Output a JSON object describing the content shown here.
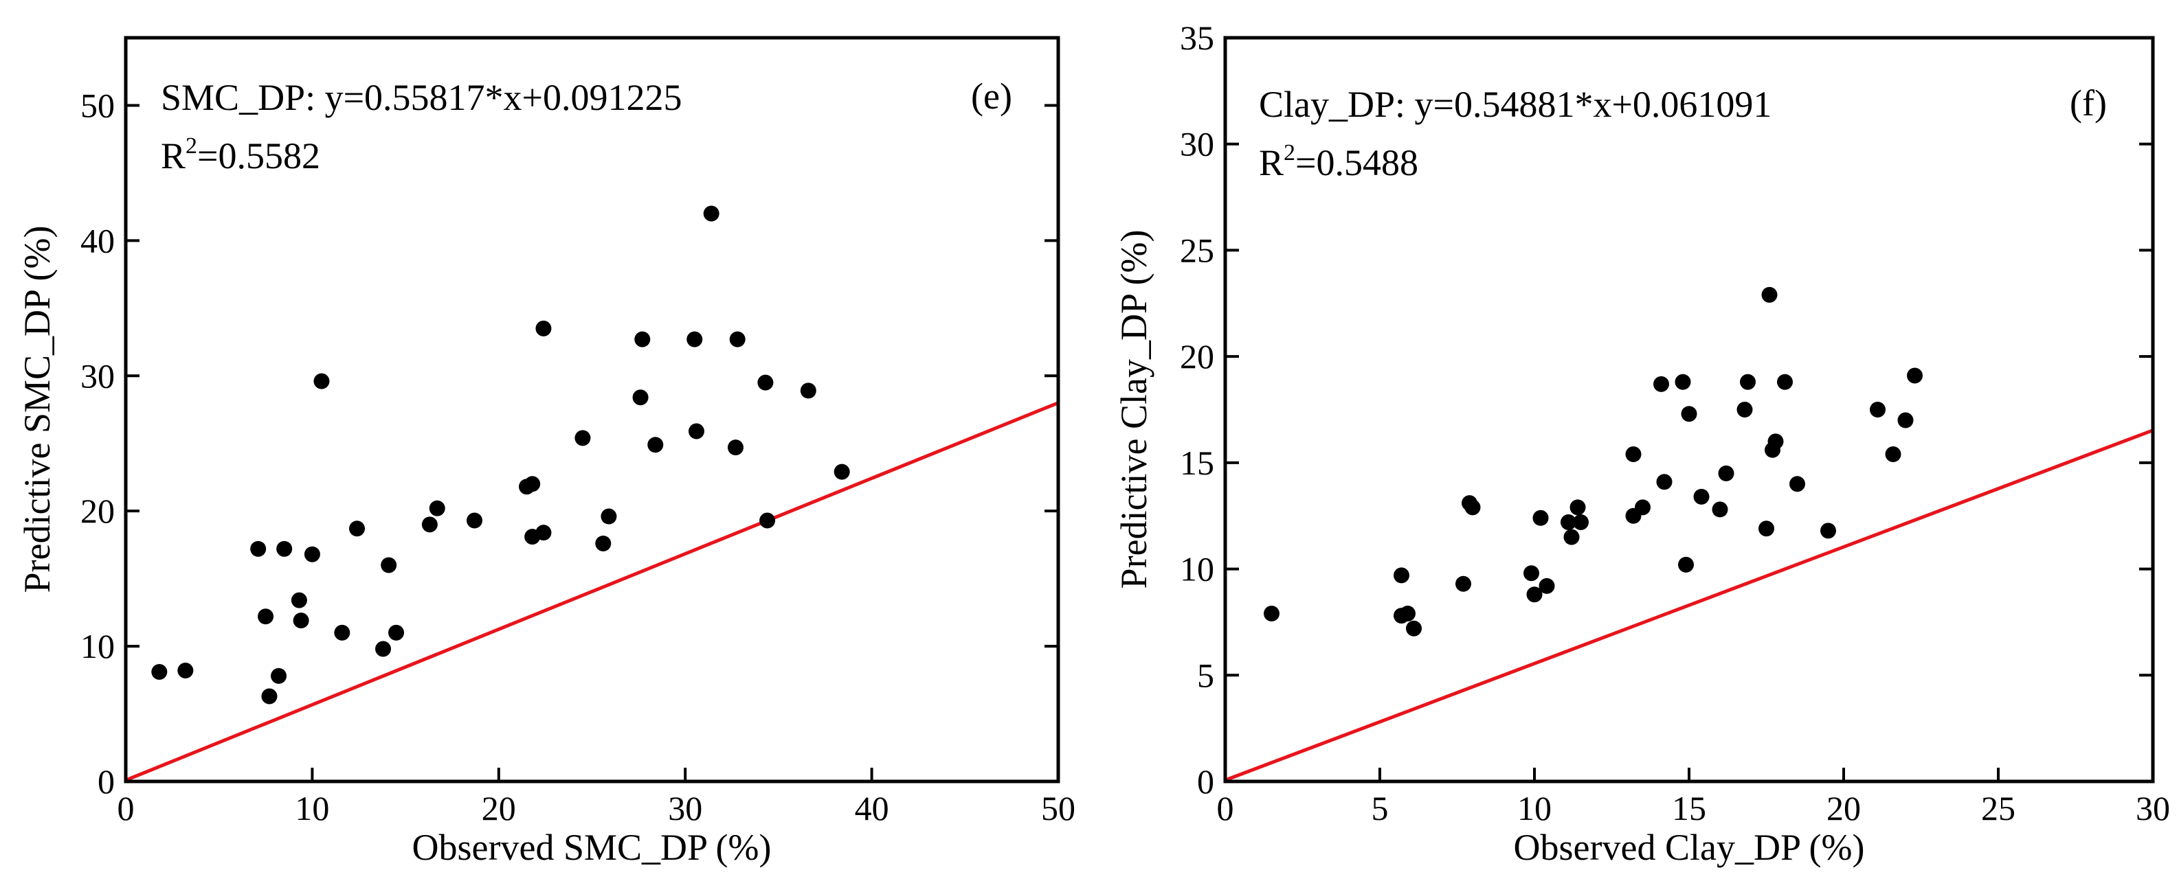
{
  "chart_data": [
    {
      "type": "scatter",
      "panel_label": "(e)",
      "equation_label": "SMC_DP: y=0.55817*x+0.091225",
      "r2_prefix": "R",
      "r2_sup": "2",
      "r2_value": "=0.5582",
      "xlabel": "Observed SMC_DP (%)",
      "ylabel": "Predictive SMC_DP (%)",
      "xlim": [
        0,
        50
      ],
      "ylim": [
        0,
        55
      ],
      "xticks": [
        0,
        10,
        20,
        30,
        40,
        50
      ],
      "yticks": [
        0,
        10,
        20,
        30,
        40,
        50
      ],
      "grid": false,
      "fit_line": {
        "slope": 0.55817,
        "intercept": 0.091225,
        "color": "#e8141b"
      },
      "marker_color": "#000000",
      "points": [
        [
          1.8,
          8.1
        ],
        [
          3.2,
          8.2
        ],
        [
          7.1,
          17.2
        ],
        [
          7.5,
          12.2
        ],
        [
          7.7,
          6.3
        ],
        [
          8.2,
          7.8
        ],
        [
          8.5,
          17.2
        ],
        [
          9.3,
          13.4
        ],
        [
          9.4,
          11.9
        ],
        [
          10.0,
          16.8
        ],
        [
          10.5,
          29.6
        ],
        [
          11.6,
          11.0
        ],
        [
          12.4,
          18.7
        ],
        [
          13.8,
          9.8
        ],
        [
          14.1,
          16.0
        ],
        [
          14.5,
          11.0
        ],
        [
          16.3,
          19.0
        ],
        [
          16.7,
          20.2
        ],
        [
          18.7,
          19.3
        ],
        [
          21.5,
          21.8
        ],
        [
          21.8,
          22.0
        ],
        [
          21.8,
          18.1
        ],
        [
          22.4,
          33.5
        ],
        [
          22.4,
          18.4
        ],
        [
          24.5,
          25.4
        ],
        [
          25.6,
          17.6
        ],
        [
          25.9,
          19.6
        ],
        [
          27.6,
          28.4
        ],
        [
          27.7,
          32.7
        ],
        [
          28.4,
          24.9
        ],
        [
          30.5,
          32.7
        ],
        [
          30.6,
          25.9
        ],
        [
          31.4,
          42.0
        ],
        [
          32.7,
          24.7
        ],
        [
          32.8,
          32.7
        ],
        [
          34.3,
          29.5
        ],
        [
          34.4,
          19.3
        ],
        [
          36.6,
          28.9
        ],
        [
          38.4,
          22.9
        ]
      ]
    },
    {
      "type": "scatter",
      "panel_label": "(f)",
      "equation_label": "Clay_DP: y=0.54881*x+0.061091",
      "r2_prefix": "R",
      "r2_sup": "2",
      "r2_value": "=0.5488",
      "xlabel": "Observed Clay_DP (%)",
      "ylabel": "Predictive Clay_DP (%)",
      "xlim": [
        0,
        30
      ],
      "ylim": [
        0,
        35
      ],
      "xticks": [
        0,
        5,
        10,
        15,
        20,
        25,
        30
      ],
      "yticks": [
        0,
        5,
        10,
        15,
        20,
        25,
        30,
        35
      ],
      "grid": false,
      "fit_line": {
        "slope": 0.54881,
        "intercept": 0.061091,
        "color": "#e8141b"
      },
      "marker_color": "#000000",
      "points": [
        [
          1.5,
          7.9
        ],
        [
          5.7,
          9.7
        ],
        [
          5.7,
          7.8
        ],
        [
          5.9,
          7.9
        ],
        [
          6.1,
          7.2
        ],
        [
          7.7,
          9.3
        ],
        [
          7.9,
          13.1
        ],
        [
          8.0,
          12.9
        ],
        [
          9.9,
          9.8
        ],
        [
          10.0,
          8.8
        ],
        [
          10.2,
          12.4
        ],
        [
          10.4,
          9.2
        ],
        [
          11.1,
          12.2
        ],
        [
          11.2,
          11.5
        ],
        [
          11.4,
          12.9
        ],
        [
          11.5,
          12.2
        ],
        [
          13.2,
          15.4
        ],
        [
          13.2,
          12.5
        ],
        [
          13.5,
          12.9
        ],
        [
          14.1,
          18.7
        ],
        [
          14.2,
          14.1
        ],
        [
          14.8,
          18.8
        ],
        [
          14.9,
          10.2
        ],
        [
          15.0,
          17.3
        ],
        [
          15.4,
          13.4
        ],
        [
          16.0,
          12.8
        ],
        [
          16.2,
          14.5
        ],
        [
          16.8,
          17.5
        ],
        [
          16.9,
          18.8
        ],
        [
          17.5,
          11.9
        ],
        [
          17.6,
          22.9
        ],
        [
          17.7,
          15.6
        ],
        [
          17.8,
          16.0
        ],
        [
          18.1,
          18.8
        ],
        [
          18.5,
          14.0
        ],
        [
          19.5,
          11.8
        ],
        [
          21.1,
          17.5
        ],
        [
          21.6,
          15.4
        ],
        [
          22.0,
          17.0
        ],
        [
          22.3,
          19.1
        ]
      ]
    }
  ]
}
